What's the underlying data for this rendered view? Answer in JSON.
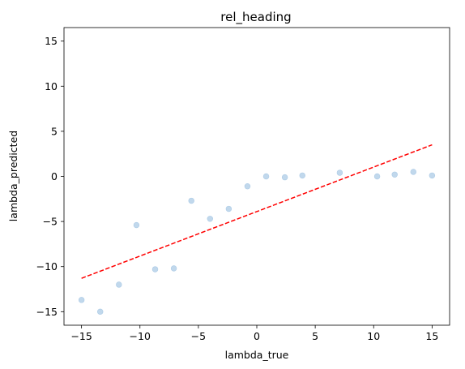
{
  "chart_data": {
    "type": "scatter",
    "title": "rel_heading",
    "xlabel": "lambda_true",
    "ylabel": "lambda_predicted",
    "xlim": [
      -16.5,
      16.5
    ],
    "ylim": [
      -16.5,
      16.5
    ],
    "grid": false,
    "xticks": [
      -15,
      -10,
      -5,
      0,
      5,
      10,
      15
    ],
    "yticks": [
      -15,
      -10,
      -5,
      0,
      5,
      10,
      15
    ],
    "xtick_labels": [
      "−15",
      "−10",
      "−5",
      "0",
      "5",
      "10",
      "15"
    ],
    "ytick_labels": [
      "−15",
      "−10",
      "−5",
      "0",
      "5",
      "10",
      "15"
    ],
    "points": {
      "color": "#a6c8e4",
      "x": [
        -15.0,
        -13.4,
        -11.8,
        -10.3,
        -8.7,
        -7.1,
        -5.6,
        -4.0,
        -2.4,
        -0.8,
        0.8,
        2.4,
        3.9,
        7.1,
        10.3,
        11.8,
        13.4,
        15.0
      ],
      "y": [
        -13.7,
        -15.0,
        -12.0,
        -5.4,
        -10.3,
        -10.2,
        -2.7,
        -4.7,
        -3.6,
        -1.1,
        0.0,
        -0.1,
        0.1,
        0.4,
        0.0,
        0.2,
        0.5,
        0.1
      ]
    },
    "fit_line": {
      "color": "#ff0000",
      "style": "dashed",
      "x": [
        -15,
        15
      ],
      "y": [
        -11.3,
        3.5
      ]
    }
  }
}
